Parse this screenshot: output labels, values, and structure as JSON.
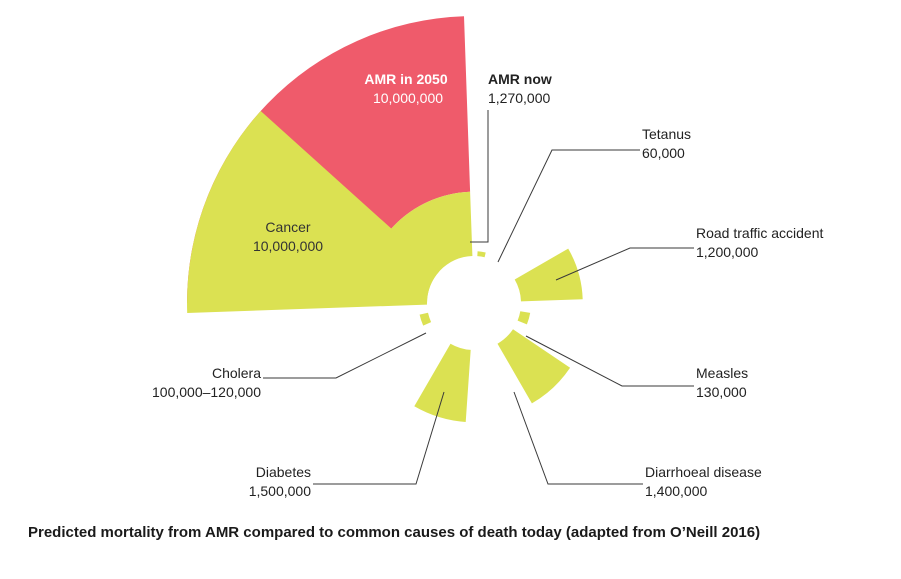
{
  "chart_data": {
    "type": "pie",
    "title": "",
    "colors": {
      "amr_2050": "#ef5b6b",
      "other": "#dbe152"
    },
    "slices": [
      {
        "name": "AMR in 2050",
        "label": "AMR in 2050",
        "value_text": "10,000,000",
        "value": 10000000,
        "color": "#ef5b6b"
      },
      {
        "name": "AMR now",
        "label": "AMR now",
        "value_text": "1,270,000",
        "value": 1270000,
        "color": "#dbe152"
      },
      {
        "name": "Tetanus",
        "label": "Tetanus",
        "value_text": "60,000",
        "value": 60000,
        "color": "#dbe152"
      },
      {
        "name": "Road traffic accident",
        "label": "Road traffic accident",
        "value_text": "1,200,000",
        "value": 1200000,
        "color": "#dbe152"
      },
      {
        "name": "Measles",
        "label": "Measles",
        "value_text": "130,000",
        "value": 130000,
        "color": "#dbe152"
      },
      {
        "name": "Diarrhoeal disease",
        "label": "Diarrhoeal disease",
        "value_text": "1,400,000",
        "value": 1400000,
        "color": "#dbe152"
      },
      {
        "name": "Diabetes",
        "label": "Diabetes",
        "value_text": "1,500,000",
        "value": 1500000,
        "color": "#dbe152"
      },
      {
        "name": "Cholera",
        "label": "Cholera",
        "value_text": "100,000–120,000",
        "value": 110000,
        "color": "#dbe152"
      },
      {
        "name": "Cancer",
        "label": "Cancer",
        "value_text": "10,000,000",
        "value": 10000000,
        "color": "#dbe152"
      }
    ]
  },
  "caption": "Predicted mortality from AMR compared to common causes of death today (adapted from O’Neill 2016)"
}
